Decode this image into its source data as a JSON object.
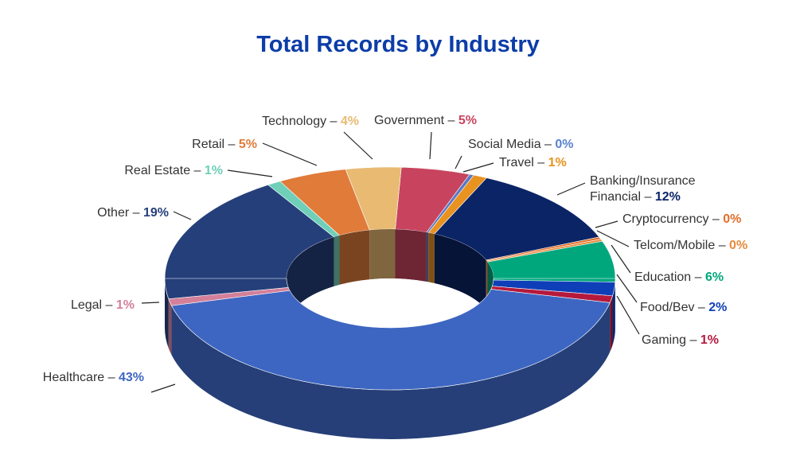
{
  "chart_data": {
    "type": "pie",
    "variant": "3d-donut",
    "title": "Total Records by Industry",
    "slices": [
      {
        "label": "Government",
        "value": 5,
        "display": "5%",
        "color": "#c8445e"
      },
      {
        "label": "Social Media",
        "value": 0,
        "display": "0%",
        "color": "#5a78c8"
      },
      {
        "label": "Travel",
        "value": 1,
        "display": "1%",
        "color": "#e8921f"
      },
      {
        "label": "Banking/Insurance Financial",
        "label_lines": [
          "Banking/Insurance",
          "Financial"
        ],
        "value": 12,
        "display": "12%",
        "color": "#0b2466"
      },
      {
        "label": "Cryptocurrency",
        "value": 0,
        "display": "0%",
        "color": "#e06f2a"
      },
      {
        "label": "Telcom/Mobile",
        "value": 0,
        "display": "0%",
        "color": "#e88a3a"
      },
      {
        "label": "Education",
        "value": 6,
        "display": "6%",
        "color": "#00a77d"
      },
      {
        "label": "Food/Bev",
        "value": 2,
        "display": "2%",
        "color": "#0f3fb8"
      },
      {
        "label": "Gaming",
        "value": 1,
        "display": "1%",
        "color": "#b5193c"
      },
      {
        "label": "Healthcare",
        "value": 43,
        "display": "43%",
        "color": "#3d66c2"
      },
      {
        "label": "Legal",
        "value": 1,
        "display": "1%",
        "color": "#d4809a"
      },
      {
        "label": "Other",
        "value": 19,
        "display": "19%",
        "color": "#253f7a"
      },
      {
        "label": "Real Estate",
        "value": 1,
        "display": "1%",
        "color": "#6fcfb8"
      },
      {
        "label": "Retail",
        "value": 5,
        "display": "5%",
        "color": "#e07b3a"
      },
      {
        "label": "Technology",
        "value": 4,
        "display": "4%",
        "color": "#e8ba72"
      }
    ],
    "pct_colors": {
      "Government": "#c8445e",
      "Social Media": "#5a82d0",
      "Travel": "#e8921f",
      "Banking/Insurance Financial": "#0b2466",
      "Cryptocurrency": "#e06f2a",
      "Telcom/Mobile": "#e88a3a",
      "Education": "#00a77d",
      "Food/Bev": "#0f3fb8",
      "Gaming": "#b5193c",
      "Healthcare": "#3d66c2",
      "Legal": "#d4809a",
      "Other": "#253f7a",
      "Real Estate": "#6fcfb8",
      "Retail": "#e07b3a",
      "Technology": "#e8ba72"
    },
    "legend": "none"
  }
}
